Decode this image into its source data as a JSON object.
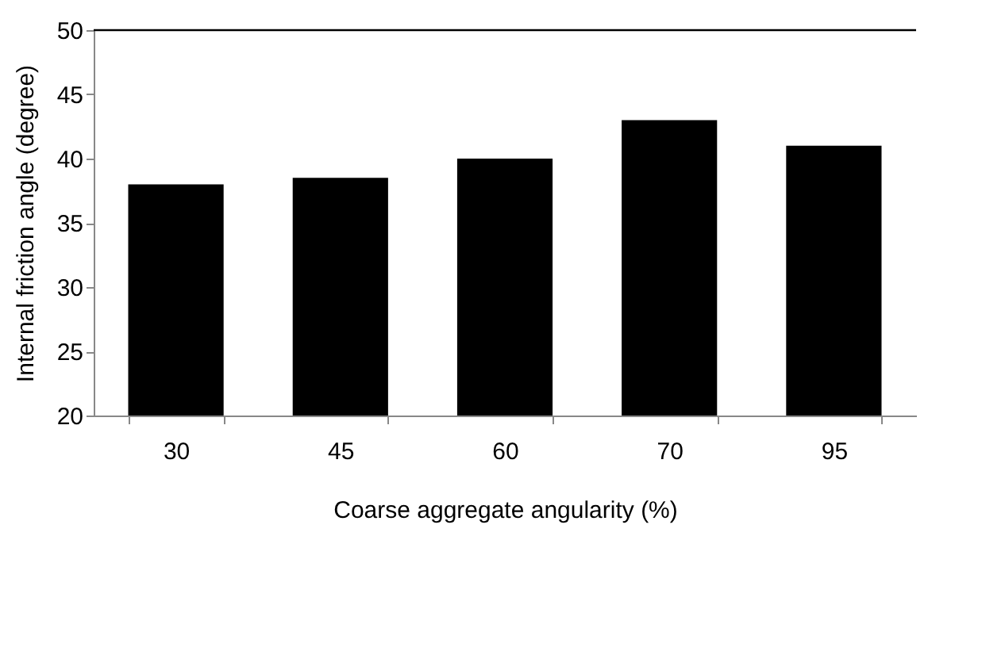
{
  "chart_data": {
    "type": "bar",
    "xlabel": "Coarse aggregate angularity (%)",
    "ylabel": "Internal friction angle (degree)",
    "categories": [
      "30",
      "45",
      "60",
      "70",
      "95"
    ],
    "values": [
      38,
      38.5,
      40,
      43,
      41
    ],
    "color": "#000000",
    "ylim": [
      20,
      50
    ],
    "yticks": [
      20,
      25,
      30,
      35,
      40,
      45,
      50
    ],
    "ref_lines": [
      {
        "axis": "y",
        "value": 50,
        "color": "#000000"
      }
    ]
  }
}
